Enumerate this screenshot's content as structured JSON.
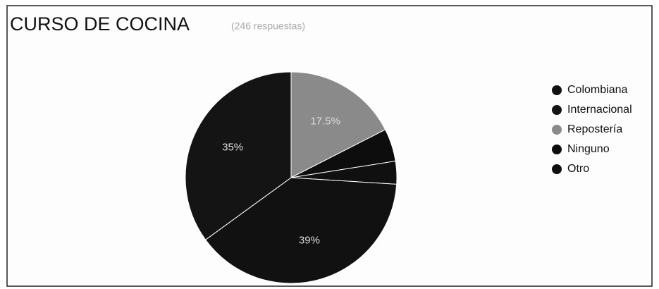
{
  "chart_data": {
    "type": "pie",
    "title": "CURSO DE COCINA",
    "subtitle": "(246 respuestas)",
    "categories": [
      "Colombiana",
      "Internacional",
      "Repostería",
      "Ninguno",
      "Otro"
    ],
    "values": [
      39,
      35,
      17.5,
      5,
      3.5
    ],
    "value_labels": [
      "39%",
      "35%",
      "17.5%",
      null,
      null
    ],
    "colors": [
      "#111111",
      "#141414",
      "#8a8a8a",
      "#0d0d0d",
      "#101010"
    ],
    "legend": "right"
  }
}
